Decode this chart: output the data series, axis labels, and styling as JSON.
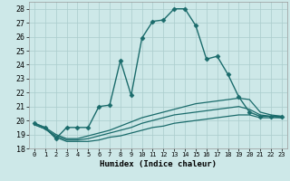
{
  "title": "",
  "xlabel": "Humidex (Indice chaleur)",
  "xlim": [
    -0.5,
    23.5
  ],
  "ylim": [
    18,
    28.5
  ],
  "yticks": [
    18,
    19,
    20,
    21,
    22,
    23,
    24,
    25,
    26,
    27,
    28
  ],
  "xticks": [
    0,
    1,
    2,
    3,
    4,
    5,
    6,
    7,
    8,
    9,
    10,
    11,
    12,
    13,
    14,
    15,
    16,
    17,
    18,
    19,
    20,
    21,
    22,
    23
  ],
  "background_color": "#cde8e8",
  "grid_color": "#aacccc",
  "line_color": "#1a6b6b",
  "series": [
    {
      "x": [
        0,
        1,
        2,
        3,
        4,
        5,
        6,
        7,
        8,
        9,
        10,
        11,
        12,
        13,
        14,
        15,
        16,
        17,
        18,
        19,
        20,
        21,
        22,
        23
      ],
      "y": [
        19.8,
        19.5,
        18.7,
        19.5,
        19.5,
        19.5,
        21.0,
        21.1,
        24.3,
        21.8,
        25.9,
        27.1,
        27.2,
        28.0,
        28.0,
        26.8,
        24.4,
        24.6,
        23.3,
        21.7,
        20.6,
        20.3,
        20.3,
        20.3
      ],
      "marker": "D",
      "markersize": 2.5,
      "linewidth": 1.0
    },
    {
      "x": [
        0,
        1,
        2,
        3,
        4,
        5,
        6,
        7,
        8,
        9,
        10,
        11,
        12,
        13,
        14,
        15,
        16,
        17,
        18,
        19,
        20,
        21,
        22,
        23
      ],
      "y": [
        19.8,
        19.5,
        19.0,
        18.7,
        18.7,
        18.9,
        19.1,
        19.3,
        19.6,
        19.9,
        20.2,
        20.4,
        20.6,
        20.8,
        21.0,
        21.2,
        21.3,
        21.4,
        21.5,
        21.6,
        21.5,
        20.6,
        20.4,
        20.3
      ],
      "marker": null,
      "markersize": 0,
      "linewidth": 0.9
    },
    {
      "x": [
        0,
        1,
        2,
        3,
        4,
        5,
        6,
        7,
        8,
        9,
        10,
        11,
        12,
        13,
        14,
        15,
        16,
        17,
        18,
        19,
        20,
        21,
        22,
        23
      ],
      "y": [
        19.7,
        19.4,
        18.9,
        18.6,
        18.6,
        18.7,
        18.9,
        19.1,
        19.3,
        19.5,
        19.8,
        20.0,
        20.2,
        20.4,
        20.5,
        20.6,
        20.7,
        20.8,
        20.9,
        21.0,
        20.8,
        20.4,
        20.3,
        20.2
      ],
      "marker": null,
      "markersize": 0,
      "linewidth": 0.9
    },
    {
      "x": [
        0,
        1,
        2,
        3,
        4,
        5,
        6,
        7,
        8,
        9,
        10,
        11,
        12,
        13,
        14,
        15,
        16,
        17,
        18,
        19,
        20,
        21,
        22,
        23
      ],
      "y": [
        19.7,
        19.4,
        18.8,
        18.5,
        18.5,
        18.5,
        18.6,
        18.8,
        18.9,
        19.1,
        19.3,
        19.5,
        19.6,
        19.8,
        19.9,
        20.0,
        20.1,
        20.2,
        20.3,
        20.4,
        20.4,
        20.2,
        20.2,
        20.2
      ],
      "marker": null,
      "markersize": 0,
      "linewidth": 0.9
    }
  ]
}
